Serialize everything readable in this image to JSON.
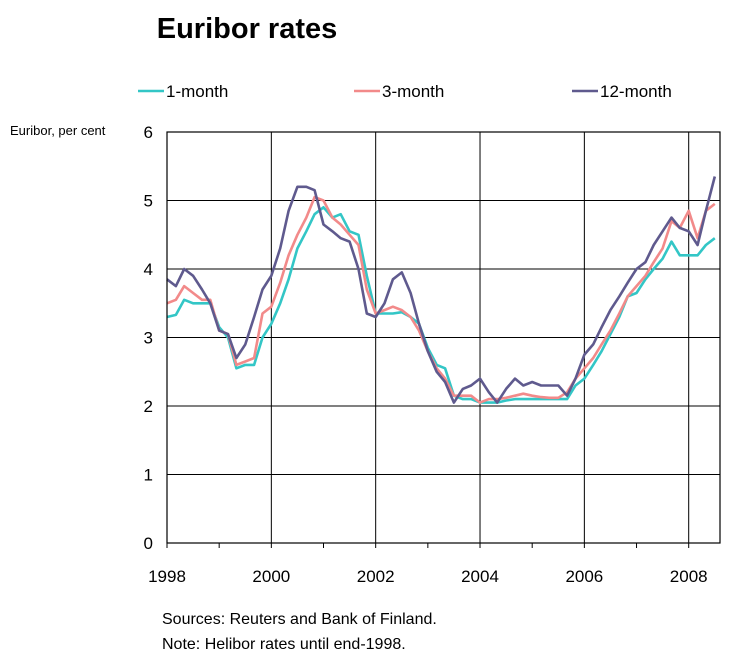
{
  "chart_data": {
    "type": "line",
    "title": "Euribor rates",
    "ylabel": "Euribor, per cent",
    "xlabel": "",
    "xlim": [
      1998,
      2008.6
    ],
    "ylim": [
      0,
      6
    ],
    "x_ticks": [
      "1998",
      "2000",
      "2002",
      "2004",
      "2006",
      "2008"
    ],
    "y_ticks": [
      "0",
      "1",
      "2",
      "3",
      "4",
      "5",
      "6"
    ],
    "grid": true,
    "legend_position": "top",
    "series": [
      {
        "name": "1-month",
        "color": "#33c6c6",
        "points": [
          [
            1998.0,
            3.3
          ],
          [
            1998.17,
            3.33
          ],
          [
            1998.33,
            3.55
          ],
          [
            1998.5,
            3.5
          ],
          [
            1998.67,
            3.5
          ],
          [
            1998.83,
            3.5
          ],
          [
            1999.0,
            3.15
          ],
          [
            1999.17,
            3.0
          ],
          [
            1999.33,
            2.55
          ],
          [
            1999.5,
            2.6
          ],
          [
            1999.67,
            2.6
          ],
          [
            1999.83,
            3.0
          ],
          [
            2000.0,
            3.2
          ],
          [
            2000.17,
            3.5
          ],
          [
            2000.33,
            3.85
          ],
          [
            2000.5,
            4.3
          ],
          [
            2000.67,
            4.55
          ],
          [
            2000.83,
            4.8
          ],
          [
            2001.0,
            4.9
          ],
          [
            2001.17,
            4.75
          ],
          [
            2001.33,
            4.8
          ],
          [
            2001.5,
            4.55
          ],
          [
            2001.67,
            4.5
          ],
          [
            2001.83,
            3.9
          ],
          [
            2002.0,
            3.35
          ],
          [
            2002.17,
            3.35
          ],
          [
            2002.33,
            3.35
          ],
          [
            2002.5,
            3.37
          ],
          [
            2002.67,
            3.3
          ],
          [
            2002.83,
            3.2
          ],
          [
            2003.0,
            2.85
          ],
          [
            2003.17,
            2.6
          ],
          [
            2003.33,
            2.55
          ],
          [
            2003.5,
            2.15
          ],
          [
            2003.67,
            2.1
          ],
          [
            2003.83,
            2.1
          ],
          [
            2004.0,
            2.05
          ],
          [
            2004.17,
            2.05
          ],
          [
            2004.33,
            2.05
          ],
          [
            2004.5,
            2.08
          ],
          [
            2004.67,
            2.1
          ],
          [
            2004.83,
            2.1
          ],
          [
            2005.0,
            2.1
          ],
          [
            2005.17,
            2.1
          ],
          [
            2005.33,
            2.1
          ],
          [
            2005.5,
            2.1
          ],
          [
            2005.67,
            2.1
          ],
          [
            2005.83,
            2.3
          ],
          [
            2006.0,
            2.4
          ],
          [
            2006.17,
            2.6
          ],
          [
            2006.33,
            2.8
          ],
          [
            2006.5,
            3.05
          ],
          [
            2006.67,
            3.3
          ],
          [
            2006.83,
            3.6
          ],
          [
            2007.0,
            3.65
          ],
          [
            2007.17,
            3.85
          ],
          [
            2007.33,
            4.0
          ],
          [
            2007.5,
            4.15
          ],
          [
            2007.67,
            4.4
          ],
          [
            2007.83,
            4.2
          ],
          [
            2008.0,
            4.2
          ],
          [
            2008.17,
            4.2
          ],
          [
            2008.33,
            4.35
          ],
          [
            2008.5,
            4.45
          ]
        ]
      },
      {
        "name": "3-month",
        "color": "#f28a8a",
        "points": [
          [
            1998.0,
            3.5
          ],
          [
            1998.17,
            3.55
          ],
          [
            1998.33,
            3.75
          ],
          [
            1998.5,
            3.65
          ],
          [
            1998.67,
            3.55
          ],
          [
            1998.83,
            3.55
          ],
          [
            1999.0,
            3.1
          ],
          [
            1999.17,
            3.05
          ],
          [
            1999.33,
            2.6
          ],
          [
            1999.5,
            2.65
          ],
          [
            1999.67,
            2.7
          ],
          [
            1999.83,
            3.35
          ],
          [
            2000.0,
            3.45
          ],
          [
            2000.17,
            3.8
          ],
          [
            2000.33,
            4.2
          ],
          [
            2000.5,
            4.5
          ],
          [
            2000.67,
            4.75
          ],
          [
            2000.83,
            5.05
          ],
          [
            2001.0,
            5.0
          ],
          [
            2001.17,
            4.75
          ],
          [
            2001.33,
            4.65
          ],
          [
            2001.5,
            4.5
          ],
          [
            2001.67,
            4.35
          ],
          [
            2001.83,
            3.7
          ],
          [
            2002.0,
            3.35
          ],
          [
            2002.17,
            3.4
          ],
          [
            2002.33,
            3.45
          ],
          [
            2002.5,
            3.4
          ],
          [
            2002.67,
            3.3
          ],
          [
            2002.83,
            3.1
          ],
          [
            2003.0,
            2.8
          ],
          [
            2003.17,
            2.55
          ],
          [
            2003.33,
            2.4
          ],
          [
            2003.5,
            2.15
          ],
          [
            2003.67,
            2.15
          ],
          [
            2003.83,
            2.15
          ],
          [
            2004.0,
            2.05
          ],
          [
            2004.17,
            2.1
          ],
          [
            2004.33,
            2.1
          ],
          [
            2004.5,
            2.12
          ],
          [
            2004.67,
            2.15
          ],
          [
            2004.83,
            2.18
          ],
          [
            2005.0,
            2.15
          ],
          [
            2005.17,
            2.13
          ],
          [
            2005.33,
            2.12
          ],
          [
            2005.5,
            2.12
          ],
          [
            2005.67,
            2.2
          ],
          [
            2005.83,
            2.4
          ],
          [
            2006.0,
            2.55
          ],
          [
            2006.17,
            2.7
          ],
          [
            2006.33,
            2.9
          ],
          [
            2006.5,
            3.1
          ],
          [
            2006.67,
            3.35
          ],
          [
            2006.83,
            3.6
          ],
          [
            2007.0,
            3.75
          ],
          [
            2007.17,
            3.9
          ],
          [
            2007.33,
            4.1
          ],
          [
            2007.5,
            4.3
          ],
          [
            2007.67,
            4.7
          ],
          [
            2007.83,
            4.6
          ],
          [
            2008.0,
            4.85
          ],
          [
            2008.17,
            4.45
          ],
          [
            2008.33,
            4.85
          ],
          [
            2008.5,
            4.95
          ]
        ]
      },
      {
        "name": "12-month",
        "color": "#5f5a8e",
        "points": [
          [
            1998.0,
            3.85
          ],
          [
            1998.17,
            3.75
          ],
          [
            1998.33,
            4.0
          ],
          [
            1998.5,
            3.9
          ],
          [
            1998.67,
            3.7
          ],
          [
            1998.83,
            3.5
          ],
          [
            1999.0,
            3.1
          ],
          [
            1999.17,
            3.05
          ],
          [
            1999.33,
            2.7
          ],
          [
            1999.5,
            2.9
          ],
          [
            1999.67,
            3.3
          ],
          [
            1999.83,
            3.7
          ],
          [
            2000.0,
            3.9
          ],
          [
            2000.17,
            4.3
          ],
          [
            2000.33,
            4.85
          ],
          [
            2000.5,
            5.2
          ],
          [
            2000.67,
            5.2
          ],
          [
            2000.83,
            5.15
          ],
          [
            2001.0,
            4.65
          ],
          [
            2001.17,
            4.55
          ],
          [
            2001.33,
            4.45
          ],
          [
            2001.5,
            4.4
          ],
          [
            2001.67,
            4.0
          ],
          [
            2001.83,
            3.35
          ],
          [
            2002.0,
            3.3
          ],
          [
            2002.17,
            3.5
          ],
          [
            2002.33,
            3.85
          ],
          [
            2002.5,
            3.95
          ],
          [
            2002.67,
            3.65
          ],
          [
            2002.83,
            3.2
          ],
          [
            2003.0,
            2.8
          ],
          [
            2003.17,
            2.5
          ],
          [
            2003.33,
            2.35
          ],
          [
            2003.5,
            2.05
          ],
          [
            2003.67,
            2.25
          ],
          [
            2003.83,
            2.3
          ],
          [
            2004.0,
            2.4
          ],
          [
            2004.17,
            2.2
          ],
          [
            2004.33,
            2.05
          ],
          [
            2004.5,
            2.25
          ],
          [
            2004.67,
            2.4
          ],
          [
            2004.83,
            2.3
          ],
          [
            2005.0,
            2.35
          ],
          [
            2005.17,
            2.3
          ],
          [
            2005.33,
            2.3
          ],
          [
            2005.5,
            2.3
          ],
          [
            2005.67,
            2.15
          ],
          [
            2005.83,
            2.4
          ],
          [
            2006.0,
            2.75
          ],
          [
            2006.17,
            2.9
          ],
          [
            2006.33,
            3.15
          ],
          [
            2006.5,
            3.4
          ],
          [
            2006.67,
            3.6
          ],
          [
            2006.83,
            3.8
          ],
          [
            2007.0,
            4.0
          ],
          [
            2007.17,
            4.1
          ],
          [
            2007.33,
            4.35
          ],
          [
            2007.5,
            4.55
          ],
          [
            2007.67,
            4.75
          ],
          [
            2007.83,
            4.6
          ],
          [
            2008.0,
            4.55
          ],
          [
            2008.17,
            4.35
          ],
          [
            2008.33,
            4.85
          ],
          [
            2008.5,
            5.35
          ]
        ]
      }
    ]
  },
  "footnotes": {
    "sources": "Sources: Reuters and Bank of Finland.",
    "note": "Note: Helibor rates until end-1998."
  }
}
